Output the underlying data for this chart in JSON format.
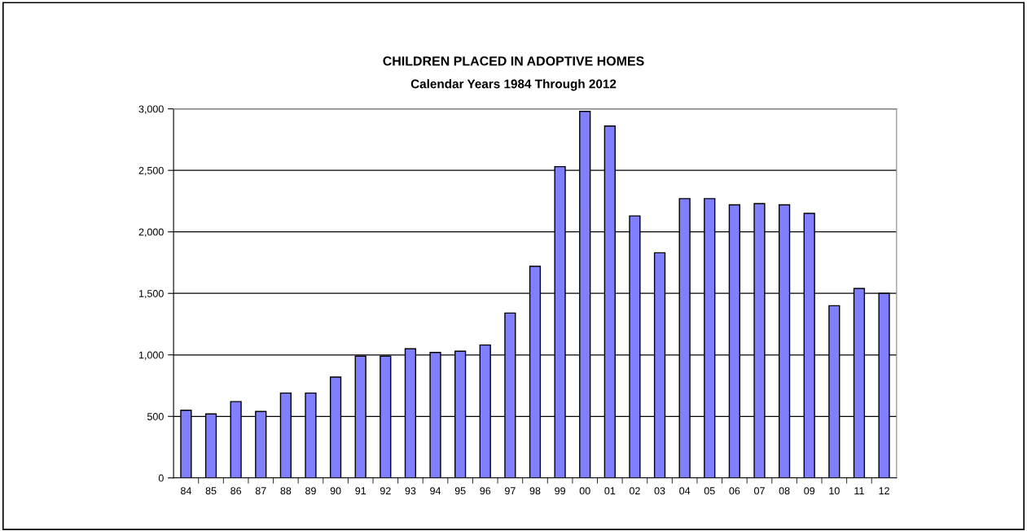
{
  "chart_data": {
    "type": "bar",
    "title": "CHILDREN PLACED IN ADOPTIVE HOMES",
    "subtitle": "Calendar Years 1984 Through 2012",
    "categories": [
      "84",
      "85",
      "86",
      "87",
      "88",
      "89",
      "90",
      "91",
      "92",
      "93",
      "94",
      "95",
      "96",
      "97",
      "98",
      "99",
      "00",
      "01",
      "02",
      "03",
      "04",
      "05",
      "06",
      "07",
      "08",
      "09",
      "10",
      "11",
      "12"
    ],
    "values": [
      550,
      520,
      620,
      540,
      690,
      690,
      820,
      990,
      990,
      1050,
      1020,
      1030,
      1080,
      1340,
      1720,
      2530,
      2980,
      2860,
      2130,
      1830,
      2270,
      2270,
      2220,
      2230,
      2220,
      2150,
      1400,
      1540,
      1500
    ],
    "color": "#8080ff",
    "ylim": [
      0,
      3000
    ],
    "yticks": [
      {
        "value": 0,
        "label": "0"
      },
      {
        "value": 500,
        "label": "500"
      },
      {
        "value": 1000,
        "label": "1,000"
      },
      {
        "value": 1500,
        "label": "1,500"
      },
      {
        "value": 2000,
        "label": "2,000"
      },
      {
        "value": 2500,
        "label": "2,500"
      },
      {
        "value": 3000,
        "label": "3,000"
      }
    ],
    "grid": "y"
  }
}
